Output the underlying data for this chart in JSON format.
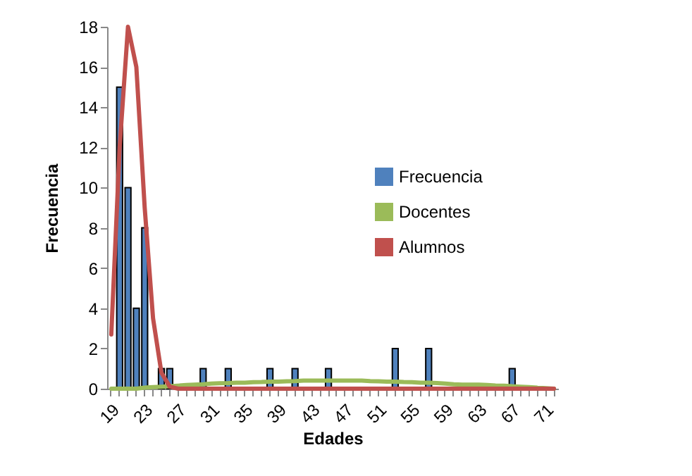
{
  "chart_data": {
    "type": "bar",
    "xlabel": "Edades",
    "ylabel": "Frecuencia",
    "legend": "right",
    "grid": false,
    "categories": [
      "19",
      null,
      null,
      null,
      "23",
      null,
      null,
      null,
      "27",
      null,
      null,
      null,
      "31",
      null,
      null,
      null,
      "35",
      null,
      null,
      null,
      "39",
      null,
      null,
      null,
      "43",
      null,
      null,
      null,
      "47",
      null,
      null,
      null,
      "51",
      null,
      null,
      null,
      "55",
      null,
      null,
      null,
      "59",
      null,
      null,
      null,
      "63",
      null,
      null,
      null,
      "67",
      null,
      null,
      null,
      "71",
      null
    ],
    "ylim": [
      0,
      18
    ],
    "yticks": [
      0,
      2,
      4,
      6,
      8,
      10,
      12,
      14,
      16,
      18
    ],
    "series": [
      {
        "name": "Frecuencia",
        "type": "bar",
        "color": "#4f81bd",
        "values": [
          0,
          15,
          10,
          4,
          8,
          0,
          1,
          1,
          0,
          0,
          0,
          1,
          0,
          0,
          1,
          0,
          0,
          0,
          0,
          1,
          0,
          0,
          1,
          0,
          0,
          0,
          1,
          0,
          0,
          0,
          0,
          0,
          0,
          0,
          2,
          0,
          0,
          0,
          2,
          0,
          0,
          0,
          0,
          0,
          0,
          0,
          0,
          0,
          1,
          0,
          0,
          0,
          0,
          0
        ]
      },
      {
        "name": "Docentes",
        "type": "line",
        "color": "#9bbb59",
        "values": [
          0,
          0,
          0,
          0,
          0.05,
          0.08,
          0.1,
          0.12,
          0.15,
          0.18,
          0.2,
          0.22,
          0.25,
          0.27,
          0.28,
          0.3,
          0.3,
          0.32,
          0.33,
          0.35,
          0.35,
          0.37,
          0.38,
          0.4,
          0.4,
          0.4,
          0.4,
          0.4,
          0.4,
          0.4,
          0.4,
          0.38,
          0.37,
          0.35,
          0.35,
          0.33,
          0.32,
          0.3,
          0.3,
          0.28,
          0.25,
          0.22,
          0.2,
          0.2,
          0.2,
          0.18,
          0.16,
          0.15,
          0.12,
          0.1,
          0.08,
          0.05,
          0.03,
          0
        ]
      },
      {
        "name": "Alumnos",
        "type": "line",
        "color": "#c0504d",
        "values": [
          2.7,
          12,
          18,
          16,
          9,
          3.5,
          0.8,
          0.1,
          0,
          0,
          0,
          0,
          0,
          0,
          0,
          0,
          0,
          0,
          0,
          0,
          0,
          0,
          0,
          0,
          0,
          0,
          0,
          0,
          0,
          0,
          0,
          0,
          0,
          0,
          0,
          0,
          0,
          0,
          0,
          0,
          0,
          0,
          0,
          0,
          0,
          0,
          0,
          0,
          0,
          0,
          0,
          0,
          0,
          0
        ]
      }
    ]
  }
}
